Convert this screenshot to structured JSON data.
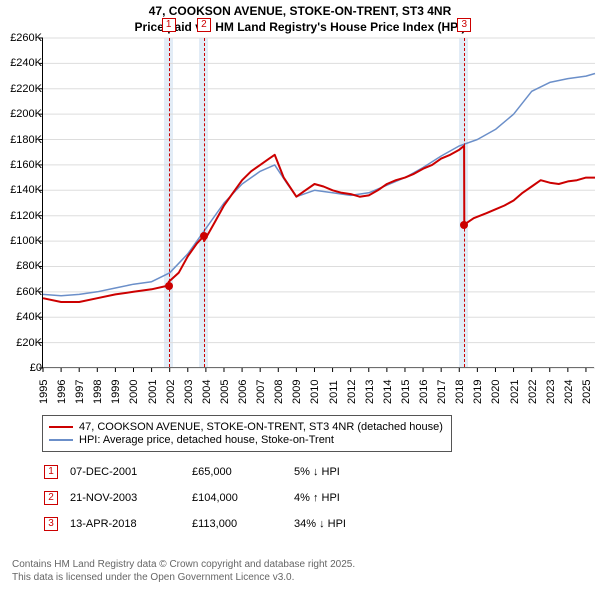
{
  "title": {
    "line1": "47, COOKSON AVENUE, STOKE-ON-TRENT, ST3 4NR",
    "line2": "Price paid vs. HM Land Registry's House Price Index (HPI)",
    "fontsize": 12,
    "color": "#000000"
  },
  "chart": {
    "type": "line",
    "background_color": "#ffffff",
    "grid_color": "#dddddd",
    "border_color": "#000000",
    "x": {
      "min": 1995,
      "max": 2025.5,
      "ticks": [
        1995,
        1996,
        1997,
        1998,
        1999,
        2000,
        2001,
        2002,
        2003,
        2004,
        2005,
        2006,
        2007,
        2008,
        2009,
        2010,
        2011,
        2012,
        2013,
        2014,
        2015,
        2016,
        2017,
        2018,
        2019,
        2020,
        2021,
        2022,
        2023,
        2024,
        2025
      ],
      "label_fontsize": 11
    },
    "y": {
      "min": 0,
      "max": 260000,
      "ticks": [
        0,
        20000,
        40000,
        60000,
        80000,
        100000,
        120000,
        140000,
        160000,
        180000,
        200000,
        220000,
        240000,
        260000
      ],
      "tick_labels": [
        "£0",
        "£20K",
        "£40K",
        "£60K",
        "£80K",
        "£100K",
        "£120K",
        "£140K",
        "£160K",
        "£180K",
        "£200K",
        "£220K",
        "£240K",
        "£260K"
      ],
      "label_fontsize": 11
    },
    "plot_bands": [
      {
        "from": 2001.7,
        "to": 2002.2,
        "color": "rgba(173,200,230,0.35)"
      },
      {
        "from": 2003.6,
        "to": 2004.1,
        "color": "rgba(173,200,230,0.35)"
      },
      {
        "from": 2018.0,
        "to": 2018.5,
        "color": "rgba(173,200,230,0.35)"
      }
    ],
    "marker_lines": [
      {
        "x": 2001.94,
        "label": "1",
        "color": "#cc0000"
      },
      {
        "x": 2003.89,
        "label": "2",
        "color": "#cc0000"
      },
      {
        "x": 2018.28,
        "label": "3",
        "color": "#cc0000"
      }
    ],
    "sale_points": [
      {
        "x": 2001.94,
        "y": 65000,
        "color": "#cc0000"
      },
      {
        "x": 2003.89,
        "y": 104000,
        "color": "#cc0000"
      },
      {
        "x": 2018.28,
        "y": 113000,
        "color": "#cc0000"
      }
    ],
    "series": [
      {
        "name": "47, COOKSON AVENUE, STOKE-ON-TRENT, ST3 4NR (detached house)",
        "color": "#cc0000",
        "line_width": 2,
        "data": [
          [
            1995.0,
            55000
          ],
          [
            1996.0,
            52000
          ],
          [
            1997.0,
            52000
          ],
          [
            1998.0,
            55000
          ],
          [
            1999.0,
            58000
          ],
          [
            2000.0,
            60000
          ],
          [
            2001.0,
            62000
          ],
          [
            2001.94,
            65000
          ],
          [
            2001.95,
            68000
          ],
          [
            2002.5,
            75000
          ],
          [
            2003.0,
            88000
          ],
          [
            2003.5,
            98000
          ],
          [
            2003.89,
            104000
          ],
          [
            2003.9,
            100000
          ],
          [
            2004.5,
            115000
          ],
          [
            2005.0,
            128000
          ],
          [
            2005.5,
            138000
          ],
          [
            2006.0,
            148000
          ],
          [
            2006.5,
            155000
          ],
          [
            2007.0,
            160000
          ],
          [
            2007.5,
            165000
          ],
          [
            2007.8,
            168000
          ],
          [
            2008.3,
            150000
          ],
          [
            2009.0,
            135000
          ],
          [
            2009.5,
            140000
          ],
          [
            2010.0,
            145000
          ],
          [
            2010.5,
            143000
          ],
          [
            2011.0,
            140000
          ],
          [
            2011.5,
            138000
          ],
          [
            2012.0,
            137000
          ],
          [
            2012.5,
            135000
          ],
          [
            2013.0,
            136000
          ],
          [
            2013.5,
            140000
          ],
          [
            2014.0,
            145000
          ],
          [
            2014.5,
            148000
          ],
          [
            2015.0,
            150000
          ],
          [
            2015.5,
            153000
          ],
          [
            2016.0,
            157000
          ],
          [
            2016.5,
            160000
          ],
          [
            2017.0,
            165000
          ],
          [
            2017.5,
            168000
          ],
          [
            2018.0,
            172000
          ],
          [
            2018.27,
            175000
          ],
          [
            2018.28,
            113000
          ],
          [
            2018.8,
            118000
          ],
          [
            2019.5,
            122000
          ],
          [
            2020.0,
            125000
          ],
          [
            2020.5,
            128000
          ],
          [
            2021.0,
            132000
          ],
          [
            2021.5,
            138000
          ],
          [
            2022.0,
            143000
          ],
          [
            2022.5,
            148000
          ],
          [
            2023.0,
            146000
          ],
          [
            2023.5,
            145000
          ],
          [
            2024.0,
            147000
          ],
          [
            2024.5,
            148000
          ],
          [
            2025.0,
            150000
          ],
          [
            2025.5,
            150000
          ]
        ]
      },
      {
        "name": "HPI: Average price, detached house, Stoke-on-Trent",
        "color": "#6b8fc9",
        "line_width": 1.5,
        "data": [
          [
            1995.0,
            58000
          ],
          [
            1996.0,
            57000
          ],
          [
            1997.0,
            58000
          ],
          [
            1998.0,
            60000
          ],
          [
            1999.0,
            63000
          ],
          [
            2000.0,
            66000
          ],
          [
            2001.0,
            68000
          ],
          [
            2002.0,
            75000
          ],
          [
            2003.0,
            90000
          ],
          [
            2004.0,
            110000
          ],
          [
            2005.0,
            130000
          ],
          [
            2006.0,
            145000
          ],
          [
            2007.0,
            155000
          ],
          [
            2007.8,
            160000
          ],
          [
            2008.5,
            145000
          ],
          [
            2009.0,
            135000
          ],
          [
            2010.0,
            140000
          ],
          [
            2011.0,
            138000
          ],
          [
            2012.0,
            136000
          ],
          [
            2013.0,
            138000
          ],
          [
            2014.0,
            144000
          ],
          [
            2015.0,
            150000
          ],
          [
            2016.0,
            158000
          ],
          [
            2017.0,
            167000
          ],
          [
            2018.0,
            175000
          ],
          [
            2019.0,
            180000
          ],
          [
            2020.0,
            188000
          ],
          [
            2021.0,
            200000
          ],
          [
            2022.0,
            218000
          ],
          [
            2023.0,
            225000
          ],
          [
            2024.0,
            228000
          ],
          [
            2025.0,
            230000
          ],
          [
            2025.5,
            232000
          ]
        ]
      }
    ]
  },
  "legend": {
    "items": [
      {
        "label": "47, COOKSON AVENUE, STOKE-ON-TRENT, ST3 4NR (detached house)",
        "color": "#cc0000"
      },
      {
        "label": "HPI: Average price, detached house, Stoke-on-Trent",
        "color": "#6b8fc9"
      }
    ],
    "border_color": "#555555",
    "fontsize": 11
  },
  "markers_table": {
    "rows": [
      {
        "num": "1",
        "date": "07-DEC-2001",
        "price": "£65,000",
        "delta": "5% ↓ HPI",
        "color": "#cc0000"
      },
      {
        "num": "2",
        "date": "21-NOV-2003",
        "price": "£104,000",
        "delta": "4% ↑ HPI",
        "color": "#cc0000"
      },
      {
        "num": "3",
        "date": "13-APR-2018",
        "price": "£113,000",
        "delta": "34% ↓ HPI",
        "color": "#cc0000"
      }
    ],
    "fontsize": 11
  },
  "attribution": {
    "line1": "Contains HM Land Registry data © Crown copyright and database right 2025.",
    "line2": "This data is licensed under the Open Government Licence v3.0.",
    "color": "#666666",
    "fontsize": 10
  }
}
